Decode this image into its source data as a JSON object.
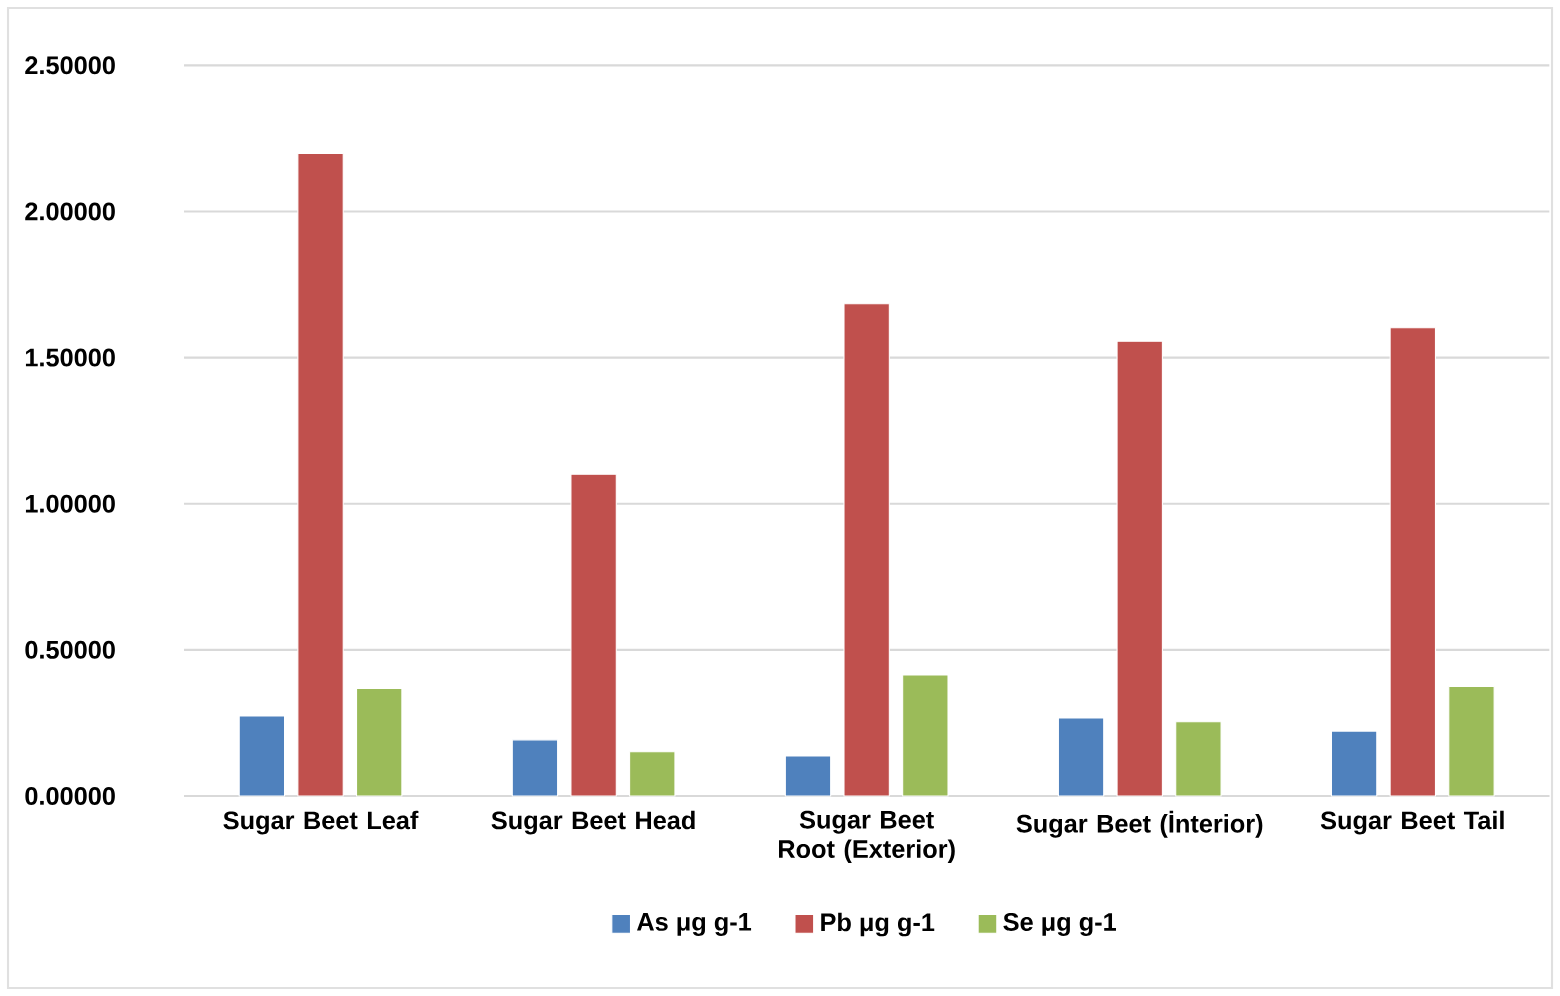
{
  "chart_data": {
    "type": "bar",
    "categories": [
      "Sugar Beet Leaf",
      "Sugar Beet Head",
      "Sugar Beet Root (Exterior)",
      "Sugar Beet (İnterior)",
      "Sugar Beet Tail"
    ],
    "series": [
      {
        "name": "As μg g-1",
        "color": "#4f81bd",
        "values": [
          0.274,
          0.192,
          0.137,
          0.267,
          0.222
        ]
      },
      {
        "name": "Pb μg g-1",
        "color": "#c0504d",
        "values": [
          2.198,
          1.101,
          1.684,
          1.556,
          1.602
        ]
      },
      {
        "name": "Se μg g-1",
        "color": "#9bbb59",
        "values": [
          0.368,
          0.151,
          0.414,
          0.254,
          0.375
        ]
      }
    ],
    "ylim": [
      0,
      2.5
    ],
    "yticks": [
      {
        "value": 0,
        "label": "0.00000"
      },
      {
        "value": 0.5,
        "label": "0.50000"
      },
      {
        "value": 1,
        "label": "1.00000"
      },
      {
        "value": 1.5,
        "label": "1.50000"
      },
      {
        "value": 2,
        "label": "2.00000"
      },
      {
        "value": 2.5,
        "label": "2.50000"
      }
    ],
    "grid": "y",
    "legend": "bottom"
  }
}
